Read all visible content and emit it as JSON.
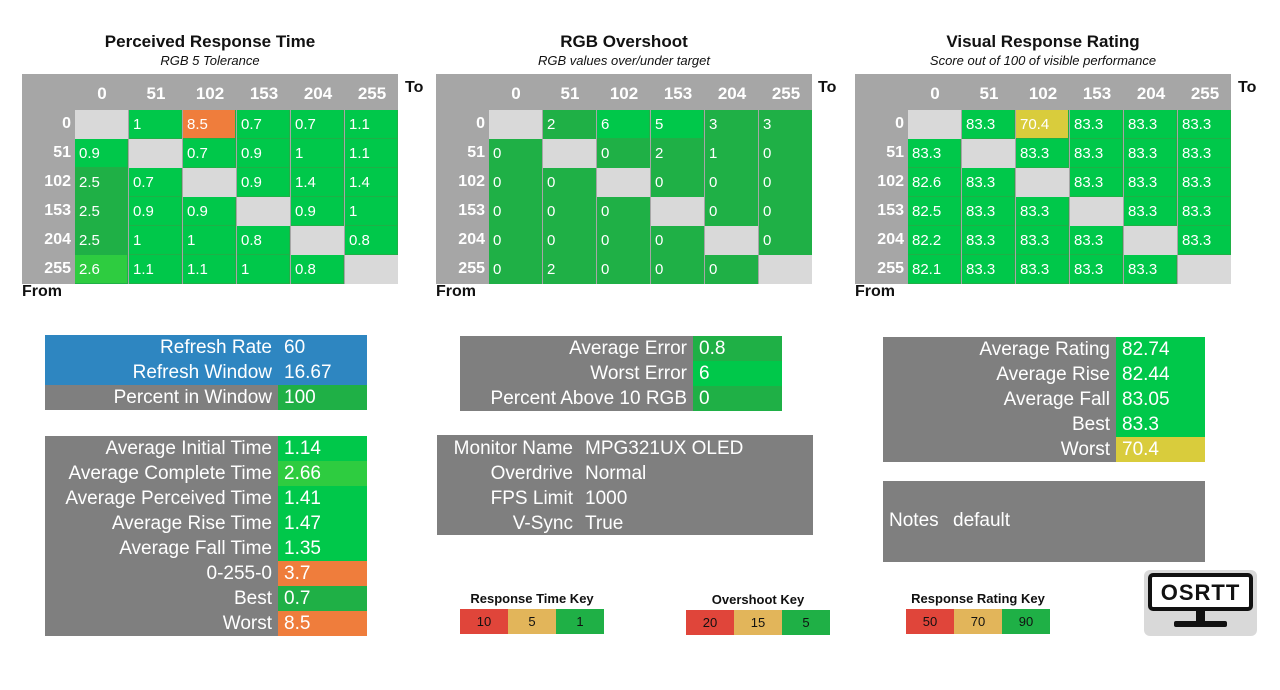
{
  "colors": {
    "green_dark": "#1fb046",
    "green": "#00c84a",
    "green_mid": "#2ecc40",
    "orange": "#ef7d3c",
    "yellow": "#d9cc3c",
    "blue": "#2e86c1",
    "gray": "#7f7f7f",
    "diag": "#d9d9d9",
    "header_gray": "#a6a6a6"
  },
  "perceived": {
    "title": "Perceived Response Time",
    "subtitle": "RGB 5 Tolerance",
    "to_label": "To",
    "from_label": "From",
    "cols": [
      "0",
      "51",
      "102",
      "153",
      "204",
      "255"
    ],
    "rows": [
      "0",
      "51",
      "102",
      "153",
      "204",
      "255"
    ],
    "cells": [
      [
        "",
        "1",
        "8.5",
        "0.7",
        "0.7",
        "1.1"
      ],
      [
        "0.9",
        "",
        "0.7",
        "0.9",
        "1",
        "1.1"
      ],
      [
        "2.5",
        "0.7",
        "",
        "0.9",
        "1.4",
        "1.4"
      ],
      [
        "2.5",
        "0.9",
        "0.9",
        "",
        "0.9",
        "1"
      ],
      [
        "2.5",
        "1",
        "1",
        "0.8",
        "",
        "0.8"
      ],
      [
        "2.6",
        "1.1",
        "1.1",
        "1",
        "0.8",
        ""
      ]
    ],
    "cell_colors": [
      [
        "diag",
        "green",
        "orange",
        "green",
        "green",
        "green"
      ],
      [
        "green",
        "diag",
        "green",
        "green",
        "green",
        "green"
      ],
      [
        "green_dark",
        "green",
        "diag",
        "green",
        "green",
        "green"
      ],
      [
        "green_dark",
        "green",
        "green",
        "diag",
        "green",
        "green"
      ],
      [
        "green_dark",
        "green",
        "green",
        "green",
        "diag",
        "green"
      ],
      [
        "green_mid",
        "green",
        "green",
        "green",
        "green",
        "diag"
      ]
    ]
  },
  "overshoot": {
    "title": "RGB Overshoot",
    "subtitle": "RGB values over/under target",
    "to_label": "To",
    "from_label": "From",
    "cols": [
      "0",
      "51",
      "102",
      "153",
      "204",
      "255"
    ],
    "rows": [
      "0",
      "51",
      "102",
      "153",
      "204",
      "255"
    ],
    "cells": [
      [
        "",
        "2",
        "6",
        "5",
        "3",
        "3"
      ],
      [
        "0",
        "",
        "0",
        "2",
        "1",
        "0"
      ],
      [
        "0",
        "0",
        "",
        "0",
        "0",
        "0"
      ],
      [
        "0",
        "0",
        "0",
        "",
        "0",
        "0"
      ],
      [
        "0",
        "0",
        "0",
        "0",
        "",
        "0"
      ],
      [
        "0",
        "2",
        "0",
        "0",
        "0",
        ""
      ]
    ],
    "cell_colors": [
      [
        "diag",
        "green_dark",
        "green",
        "green",
        "green_dark",
        "green_dark"
      ],
      [
        "green_dark",
        "diag",
        "green_dark",
        "green_dark",
        "green_dark",
        "green_dark"
      ],
      [
        "green_dark",
        "green_dark",
        "diag",
        "green_dark",
        "green_dark",
        "green_dark"
      ],
      [
        "green_dark",
        "green_dark",
        "green_dark",
        "diag",
        "green_dark",
        "green_dark"
      ],
      [
        "green_dark",
        "green_dark",
        "green_dark",
        "green_dark",
        "diag",
        "green_dark"
      ],
      [
        "green_dark",
        "green_dark",
        "green_dark",
        "green_dark",
        "green_dark",
        "diag"
      ]
    ]
  },
  "rating": {
    "title": "Visual Response Rating",
    "subtitle": "Score out of 100 of visible performance",
    "to_label": "To",
    "from_label": "From",
    "cols": [
      "0",
      "51",
      "102",
      "153",
      "204",
      "255"
    ],
    "rows": [
      "0",
      "51",
      "102",
      "153",
      "204",
      "255"
    ],
    "cells": [
      [
        "",
        "83.3",
        "70.4",
        "83.3",
        "83.3",
        "83.3"
      ],
      [
        "83.3",
        "",
        "83.3",
        "83.3",
        "83.3",
        "83.3"
      ],
      [
        "82.6",
        "83.3",
        "",
        "83.3",
        "83.3",
        "83.3"
      ],
      [
        "82.5",
        "83.3",
        "83.3",
        "",
        "83.3",
        "83.3"
      ],
      [
        "82.2",
        "83.3",
        "83.3",
        "83.3",
        "",
        "83.3"
      ],
      [
        "82.1",
        "83.3",
        "83.3",
        "83.3",
        "83.3",
        ""
      ]
    ],
    "cell_colors": [
      [
        "diag",
        "green",
        "yellow",
        "green",
        "green",
        "green"
      ],
      [
        "green",
        "diag",
        "green",
        "green",
        "green",
        "green"
      ],
      [
        "green",
        "green",
        "diag",
        "green",
        "green",
        "green"
      ],
      [
        "green",
        "green",
        "green",
        "diag",
        "green",
        "green"
      ],
      [
        "green",
        "green",
        "green",
        "green",
        "diag",
        "green"
      ],
      [
        "green",
        "green",
        "green",
        "green",
        "green",
        "diag"
      ]
    ]
  },
  "refresh": [
    {
      "label": "Refresh Rate",
      "value": "60",
      "label_color": "blue",
      "value_color": "blue"
    },
    {
      "label": "Refresh Window",
      "value": "16.67",
      "label_color": "blue",
      "value_color": "blue"
    },
    {
      "label": "Percent in Window",
      "value": "100",
      "label_color": "gray",
      "value_color": "green_dark"
    }
  ],
  "times": [
    {
      "label": "Average Initial Time",
      "value": "1.14",
      "value_color": "green"
    },
    {
      "label": "Average Complete Time",
      "value": "2.66",
      "value_color": "green_mid"
    },
    {
      "label": "Average Perceived Time",
      "value": "1.41",
      "value_color": "green"
    },
    {
      "label": "Average Rise Time",
      "value": "1.47",
      "value_color": "green"
    },
    {
      "label": "Average Fall Time",
      "value": "1.35",
      "value_color": "green"
    },
    {
      "label": "0-255-0",
      "value": "3.7",
      "value_color": "orange"
    },
    {
      "label": "Best",
      "value": "0.7",
      "value_color": "green_dark"
    },
    {
      "label": "Worst",
      "value": "8.5",
      "value_color": "orange"
    }
  ],
  "errors": [
    {
      "label": "Average Error",
      "value": "0.8",
      "value_color": "green_dark"
    },
    {
      "label": "Worst Error",
      "value": "6",
      "value_color": "green"
    },
    {
      "label": "Percent Above 10 RGB",
      "value": "0",
      "value_color": "green_dark"
    }
  ],
  "monitor": [
    {
      "label": "Monitor Name",
      "value": "MPG321UX OLED"
    },
    {
      "label": "Overdrive",
      "value": "Normal"
    },
    {
      "label": "FPS Limit",
      "value": "1000"
    },
    {
      "label": "V-Sync",
      "value": "True"
    }
  ],
  "ratings": [
    {
      "label": "Average Rating",
      "value": "82.74",
      "value_color": "green"
    },
    {
      "label": "Average Rise",
      "value": "82.44",
      "value_color": "green"
    },
    {
      "label": "Average Fall",
      "value": "83.05",
      "value_color": "green"
    },
    {
      "label": "Best",
      "value": "83.3",
      "value_color": "green"
    },
    {
      "label": "Worst",
      "value": "70.4",
      "value_color": "yellow"
    }
  ],
  "notes": {
    "label": "Notes",
    "value": "default"
  },
  "keys": {
    "response": {
      "title": "Response Time Key",
      "values": [
        "10",
        "5",
        "1"
      ],
      "colors": [
        "#e0453a",
        "#e2b55a",
        "#1fb046"
      ]
    },
    "overshoot": {
      "title": "Overshoot Key",
      "values": [
        "20",
        "15",
        "5"
      ],
      "colors": [
        "#e0453a",
        "#e2b55a",
        "#1fb046"
      ]
    },
    "rating": {
      "title": "Response Rating Key",
      "values": [
        "50",
        "70",
        "90"
      ],
      "colors": [
        "#e0453a",
        "#e2b55a",
        "#1fb046"
      ]
    }
  },
  "logo": {
    "text": "OSRTT"
  }
}
